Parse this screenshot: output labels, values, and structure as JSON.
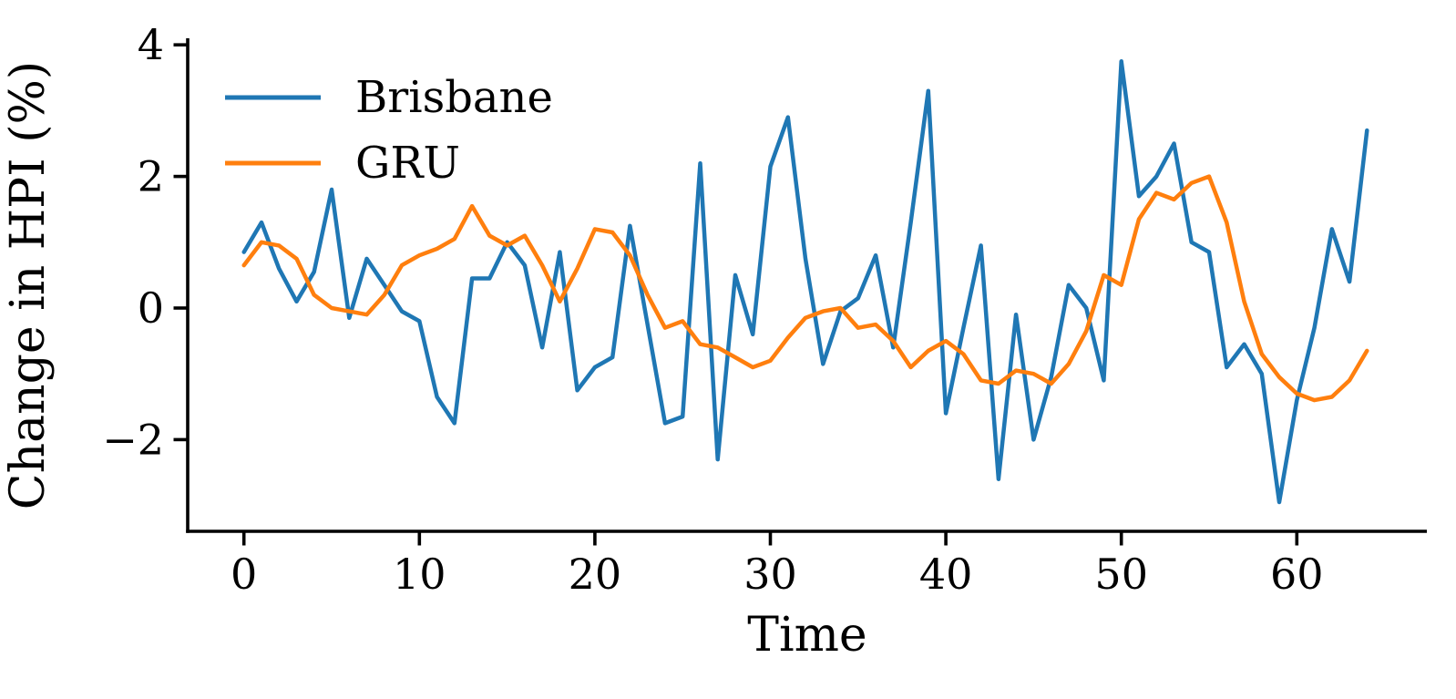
{
  "chart_data": {
    "type": "line",
    "title": "",
    "xlabel": "Time",
    "ylabel": "Change in HPI (%)",
    "xticks": [
      0,
      10,
      20,
      30,
      40,
      50,
      60
    ],
    "yticks": [
      -2,
      0,
      2,
      4
    ],
    "xlim": [
      -3.2,
      67.4
    ],
    "ylim": [
      -3.39,
      4.07
    ],
    "grid": false,
    "legend_position": "upper-left",
    "axis_color": "#000000",
    "background_color": "#ffffff",
    "x": [
      0,
      1,
      2,
      3,
      4,
      5,
      6,
      7,
      8,
      9,
      10,
      11,
      12,
      13,
      14,
      15,
      16,
      17,
      18,
      19,
      20,
      21,
      22,
      23,
      24,
      25,
      26,
      27,
      28,
      29,
      30,
      31,
      32,
      33,
      34,
      35,
      36,
      37,
      38,
      39,
      40,
      41,
      42,
      43,
      44,
      45,
      46,
      47,
      48,
      49,
      50,
      51,
      52,
      53,
      54,
      55,
      56,
      57,
      58,
      59,
      60,
      61,
      62,
      63,
      64
    ],
    "series": [
      {
        "name": "Brisbane",
        "color": "#1f77b4",
        "values": [
          0.85,
          1.3,
          0.6,
          0.1,
          0.55,
          1.8,
          -0.15,
          0.75,
          0.35,
          -0.05,
          -0.2,
          -1.35,
          -1.75,
          0.45,
          0.45,
          1.0,
          0.65,
          -0.6,
          0.85,
          -1.25,
          -0.9,
          -0.75,
          1.25,
          -0.25,
          -1.75,
          -1.65,
          2.2,
          -2.3,
          0.5,
          -0.4,
          2.15,
          2.9,
          0.75,
          -0.85,
          -0.05,
          0.15,
          0.8,
          -0.6,
          1.3,
          3.3,
          -1.6,
          -0.3,
          0.95,
          -2.6,
          -0.1,
          -2.0,
          -1.05,
          0.35,
          0.0,
          -1.1,
          3.75,
          1.7,
          2.0,
          2.5,
          1.0,
          0.85,
          -0.9,
          -0.55,
          -1.0,
          -2.95,
          -1.4,
          -0.3,
          1.2,
          0.4,
          2.7
        ]
      },
      {
        "name": "GRU",
        "color": "#ff7f0e",
        "values": [
          0.65,
          1.0,
          0.95,
          0.75,
          0.2,
          0.0,
          -0.05,
          -0.1,
          0.2,
          0.65,
          0.8,
          0.9,
          1.05,
          1.55,
          1.1,
          0.95,
          1.1,
          0.65,
          0.1,
          0.6,
          1.2,
          1.15,
          0.8,
          0.2,
          -0.3,
          -0.2,
          -0.55,
          -0.6,
          -0.75,
          -0.9,
          -0.8,
          -0.45,
          -0.15,
          -0.05,
          0.0,
          -0.3,
          -0.25,
          -0.5,
          -0.9,
          -0.65,
          -0.5,
          -0.7,
          -1.1,
          -1.15,
          -0.95,
          -1.0,
          -1.15,
          -0.85,
          -0.35,
          0.5,
          0.35,
          1.35,
          1.75,
          1.65,
          1.9,
          2.0,
          1.3,
          0.1,
          -0.7,
          -1.05,
          -1.3,
          -1.4,
          -1.35,
          -1.1,
          -0.65
        ]
      }
    ]
  }
}
